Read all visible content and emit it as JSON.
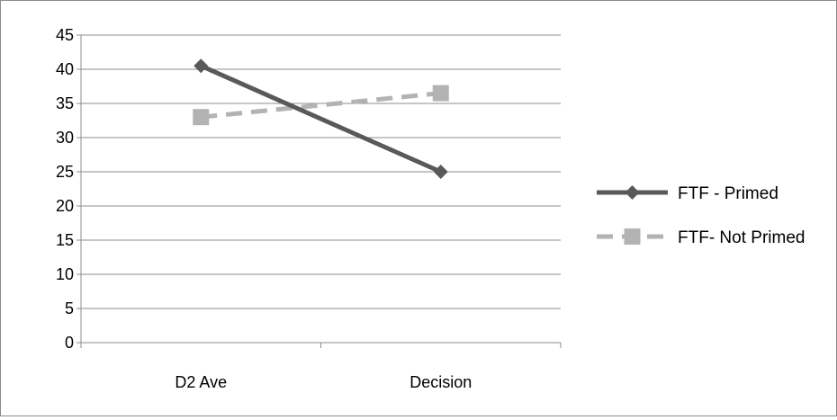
{
  "chart_data": {
    "type": "line",
    "categories": [
      "D2 Ave",
      "Decision"
    ],
    "series": [
      {
        "name": "FTF - Primed",
        "values": [
          40.5,
          25
        ],
        "color": "#595959",
        "dash": "solid",
        "marker": "diamond"
      },
      {
        "name": "FTF- Not Primed",
        "values": [
          33,
          36.5
        ],
        "color": "#b3b3b3",
        "dash": "dashed",
        "marker": "square"
      }
    ],
    "ylim": [
      0,
      45
    ],
    "yticks": [
      0,
      5,
      10,
      15,
      20,
      25,
      30,
      35,
      40,
      45
    ],
    "grid": true,
    "legend": "right",
    "title": "",
    "xlabel": "",
    "ylabel": ""
  }
}
